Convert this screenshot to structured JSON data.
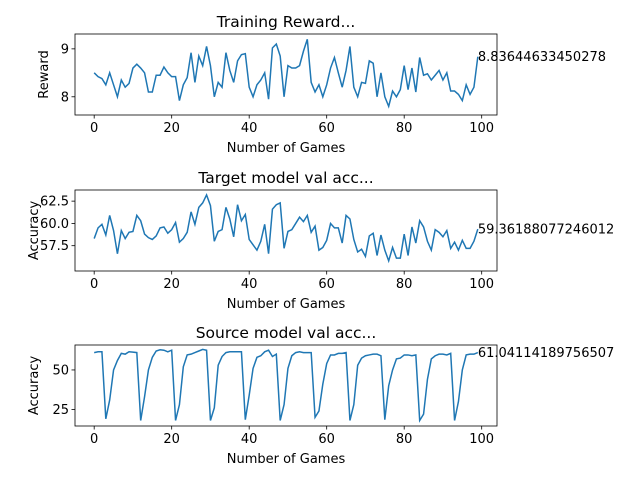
{
  "chart_data": [
    {
      "type": "line",
      "title": "Training Reward...",
      "xlabel": "Number of Games",
      "ylabel": "Reward",
      "color": "#1f77b4",
      "x": [
        0,
        1,
        2,
        3,
        4,
        5,
        6,
        7,
        8,
        9,
        10,
        11,
        12,
        13,
        14,
        15,
        16,
        17,
        18,
        19,
        20,
        21,
        22,
        23,
        24,
        25,
        26,
        27,
        28,
        29,
        30,
        31,
        32,
        33,
        34,
        35,
        36,
        37,
        38,
        39,
        40,
        41,
        42,
        43,
        44,
        45,
        46,
        47,
        48,
        49,
        50,
        51,
        52,
        53,
        54,
        55,
        56,
        57,
        58,
        59,
        60,
        61,
        62,
        63,
        64,
        65,
        66,
        67,
        68,
        69,
        70,
        71,
        72,
        73,
        74,
        75,
        76,
        77,
        78,
        79,
        80,
        81,
        82,
        83,
        84,
        85,
        86,
        87,
        88,
        89,
        90,
        91,
        92,
        93,
        94,
        95,
        96,
        97,
        98,
        99
      ],
      "values": [
        8.5,
        8.42,
        8.38,
        8.25,
        8.5,
        8.25,
        8.0,
        8.35,
        8.2,
        8.28,
        8.6,
        8.68,
        8.6,
        8.5,
        8.1,
        8.1,
        8.45,
        8.45,
        8.62,
        8.5,
        8.42,
        8.42,
        7.92,
        8.25,
        8.4,
        8.92,
        8.3,
        8.85,
        8.65,
        9.05,
        8.65,
        8.0,
        8.3,
        8.2,
        8.92,
        8.55,
        8.3,
        8.75,
        8.88,
        8.9,
        8.2,
        8.0,
        8.25,
        8.35,
        8.5,
        7.95,
        9.02,
        9.1,
        8.85,
        8.0,
        8.65,
        8.6,
        8.6,
        8.65,
        8.95,
        9.2,
        8.3,
        8.1,
        8.25,
        8.0,
        8.25,
        8.6,
        8.82,
        8.5,
        8.2,
        8.55,
        9.05,
        8.2,
        8.0,
        8.3,
        8.28,
        8.75,
        8.7,
        8.0,
        8.5,
        8.0,
        7.8,
        8.12,
        8.0,
        8.15,
        8.65,
        8.15,
        8.6,
        8.1,
        8.82,
        8.45,
        8.48,
        8.35,
        8.45,
        8.55,
        8.35,
        8.5,
        8.12,
        8.12,
        8.05,
        7.92,
        8.25,
        8.05,
        8.2,
        8.83644633450278
      ],
      "xlim": [
        -4.95,
        103.95
      ],
      "xticks": [
        0,
        20,
        40,
        60,
        80,
        100
      ],
      "ylim": [
        7.62,
        9.31
      ],
      "yticks": [
        8,
        9
      ]
    },
    {
      "type": "line",
      "title": "Target model val acc...",
      "xlabel": "Number of Games",
      "ylabel": "Accuracy",
      "color": "#1f77b4",
      "x": [
        0,
        1,
        2,
        3,
        4,
        5,
        6,
        7,
        8,
        9,
        10,
        11,
        12,
        13,
        14,
        15,
        16,
        17,
        18,
        19,
        20,
        21,
        22,
        23,
        24,
        25,
        26,
        27,
        28,
        29,
        30,
        31,
        32,
        33,
        34,
        35,
        36,
        37,
        38,
        39,
        40,
        41,
        42,
        43,
        44,
        45,
        46,
        47,
        48,
        49,
        50,
        51,
        52,
        53,
        54,
        55,
        56,
        57,
        58,
        59,
        60,
        61,
        62,
        63,
        64,
        65,
        66,
        67,
        68,
        69,
        70,
        71,
        72,
        73,
        74,
        75,
        76,
        77,
        78,
        79,
        80,
        81,
        82,
        83,
        84,
        85,
        86,
        87,
        88,
        89,
        90,
        91,
        92,
        93,
        94,
        95,
        96,
        97,
        98,
        99
      ],
      "values": [
        58.3,
        59.5,
        59.9,
        58.7,
        60.9,
        59.2,
        56.6,
        59.2,
        58.3,
        59.0,
        59.1,
        60.9,
        60.3,
        58.8,
        58.4,
        58.2,
        58.6,
        59.5,
        59.6,
        58.9,
        59.3,
        60.1,
        57.9,
        58.3,
        59.0,
        61.3,
        59.9,
        61.8,
        62.3,
        63.2,
        62.0,
        58.0,
        59.1,
        59.3,
        61.8,
        60.5,
        58.5,
        62.1,
        60.3,
        61.0,
        58.2,
        57.6,
        57.0,
        58.0,
        59.9,
        56.6,
        61.6,
        62.1,
        62.3,
        57.2,
        59.1,
        59.3,
        60.0,
        60.7,
        60.2,
        60.9,
        59.0,
        59.7,
        57.0,
        57.3,
        58.1,
        60.0,
        59.5,
        59.5,
        57.8,
        60.9,
        60.5,
        58.2,
        56.8,
        57.1,
        56.3,
        58.6,
        58.9,
        56.4,
        58.7,
        57.0,
        55.8,
        57.3,
        56.1,
        56.1,
        58.8,
        56.4,
        59.6,
        57.8,
        60.3,
        59.6,
        58.0,
        57.0,
        59.3,
        59.0,
        58.5,
        59.2,
        57.2,
        57.9,
        57.0,
        58.1,
        57.2,
        57.2,
        58.0,
        59.36188077246012
      ],
      "xlim": [
        -4.95,
        103.95
      ],
      "xticks": [
        0,
        20,
        40,
        60,
        80,
        100
      ],
      "ylim": [
        54.66,
        63.75
      ],
      "yticks": [
        57.5,
        {
          "value": 60,
          "label": "60.0"
        },
        62.5
      ]
    },
    {
      "type": "line",
      "title": "Source model val acc...",
      "xlabel": "Number of Games",
      "ylabel": "Accuracy",
      "color": "#1f77b4",
      "x": [
        0,
        1,
        2,
        3,
        4,
        5,
        6,
        7,
        8,
        9,
        10,
        11,
        12,
        13,
        14,
        15,
        16,
        17,
        18,
        19,
        20,
        21,
        22,
        23,
        24,
        25,
        26,
        27,
        28,
        29,
        30,
        31,
        32,
        33,
        34,
        35,
        36,
        37,
        38,
        39,
        40,
        41,
        42,
        43,
        44,
        45,
        46,
        47,
        48,
        49,
        50,
        51,
        52,
        53,
        54,
        55,
        56,
        57,
        58,
        59,
        60,
        61,
        62,
        63,
        64,
        65,
        66,
        67,
        68,
        69,
        70,
        71,
        72,
        73,
        74,
        75,
        76,
        77,
        78,
        79,
        80,
        81,
        82,
        83,
        84,
        85,
        86,
        87,
        88,
        89,
        90,
        91,
        92,
        93,
        94,
        95,
        96,
        97,
        98,
        99
      ],
      "values": [
        61,
        61.5,
        61.5,
        19,
        31,
        50,
        56,
        60.5,
        60,
        61.5,
        61.3,
        61,
        18,
        33,
        50,
        58,
        62,
        62.8,
        62.5,
        61.5,
        62.5,
        18,
        28,
        52,
        59.5,
        60,
        61,
        62,
        63,
        62.5,
        18,
        26,
        53,
        58.5,
        61,
        61.5,
        61.5,
        61.5,
        61.5,
        18.5,
        34,
        51,
        58,
        59,
        61.5,
        62.5,
        58.5,
        60,
        18,
        28,
        51,
        59,
        61,
        61.5,
        61,
        61,
        61,
        20,
        24,
        41,
        54,
        59.5,
        59.5,
        60.5,
        60.5,
        61,
        18,
        28,
        53,
        57.5,
        59,
        59.5,
        60,
        60,
        59,
        18.5,
        40,
        50,
        57,
        57.5,
        59.5,
        59.5,
        59,
        59.5,
        18,
        22,
        44,
        57,
        59,
        60,
        60,
        59.5,
        60.5,
        18,
        30,
        50,
        59.5,
        60,
        60,
        61.04114189756507
      ],
      "xlim": [
        -4.95,
        103.95
      ],
      "xticks": [
        0,
        20,
        40,
        60,
        80,
        100
      ],
      "ylim": [
        14.5,
        65.8
      ],
      "yticks": [
        25,
        50
      ]
    }
  ]
}
